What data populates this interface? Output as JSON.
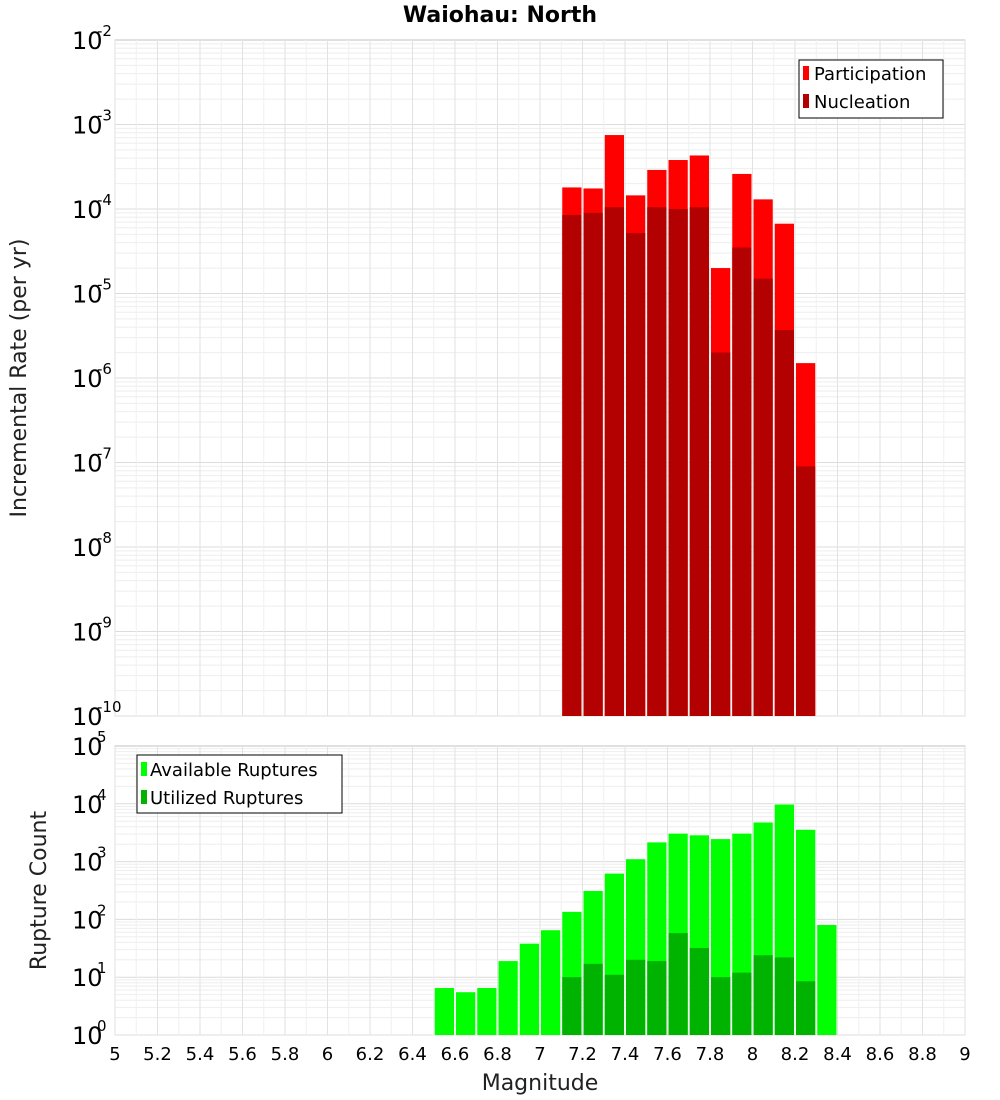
{
  "chart_data": [
    {
      "type": "bar",
      "title": "Waiohau: North",
      "xlabel": "",
      "ylabel": "Incremental Rate (per yr)",
      "y_scale": "log",
      "ylim": [
        1e-10,
        0.01
      ],
      "xlim": [
        5,
        9
      ],
      "bin_width": 0.1,
      "x": [
        7.15,
        7.25,
        7.35,
        7.45,
        7.55,
        7.65,
        7.75,
        7.85,
        7.95,
        8.05,
        8.15,
        8.25
      ],
      "series": [
        {
          "name": "Participation",
          "color": "#ff0000",
          "values": [
            0.00018,
            0.000175,
            0.00075,
            0.000145,
            0.00029,
            0.00038,
            0.00043,
            2e-05,
            0.00026,
            0.00013,
            6.7e-05,
            1.5e-06
          ]
        },
        {
          "name": "Nucleation",
          "color": "#b30000",
          "values": [
            8.5e-05,
            9e-05,
            0.000105,
            5.2e-05,
            0.000105,
            0.0001,
            0.000105,
            2e-06,
            3.5e-05,
            1.5e-05,
            3.7e-06,
            9e-08
          ]
        }
      ],
      "legend_position": "top-right",
      "grid": true
    },
    {
      "type": "bar",
      "title": "",
      "xlabel": "Magnitude",
      "ylabel": "Rupture Count",
      "y_scale": "log",
      "ylim": [
        1,
        100000.0
      ],
      "xlim": [
        5,
        9
      ],
      "bin_width": 0.1,
      "x_ticks": [
        "5",
        "5.2",
        "5.4",
        "5.6",
        "5.8",
        "6",
        "6.2",
        "6.4",
        "6.6",
        "6.8",
        "7",
        "7.2",
        "7.4",
        "7.6",
        "7.8",
        "8",
        "8.2",
        "8.4",
        "8.6",
        "8.8",
        "9"
      ],
      "series": [
        {
          "name": "Available Ruptures",
          "color": "#00ff00",
          "x": [
            6.55,
            6.65,
            6.75,
            6.85,
            6.95,
            7.05,
            7.15,
            7.25,
            7.35,
            7.45,
            7.55,
            7.65,
            7.75,
            7.85,
            7.95,
            8.05,
            8.15,
            8.25,
            8.35
          ],
          "values": [
            6.5,
            5.5,
            6.5,
            19,
            38,
            65,
            135,
            310,
            620,
            1100,
            2150,
            3050,
            2850,
            2450,
            3050,
            4750,
            9700,
            3550,
            80
          ]
        },
        {
          "name": "Utilized Ruptures",
          "color": "#00b300",
          "x": [
            7.15,
            7.25,
            7.35,
            7.45,
            7.55,
            7.65,
            7.75,
            7.85,
            7.95,
            8.05,
            8.15,
            8.25
          ],
          "values": [
            10,
            17,
            11,
            20,
            19,
            58,
            32,
            10,
            12,
            24,
            22,
            8.5
          ]
        }
      ],
      "legend_position": "top-left",
      "grid": true
    }
  ],
  "labels": {
    "title": "Waiohau: North",
    "top_ylabel": "Incremental Rate (per yr)",
    "bottom_ylabel": "Rupture Count",
    "xlabel": "Magnitude",
    "top_y_exponents": [
      "-2",
      "-3",
      "-4",
      "-5",
      "-6",
      "-7",
      "-8",
      "-9",
      "-10"
    ],
    "bottom_y_exponents": [
      "5",
      "4",
      "3",
      "2",
      "1",
      "0"
    ],
    "y_base": "10"
  }
}
